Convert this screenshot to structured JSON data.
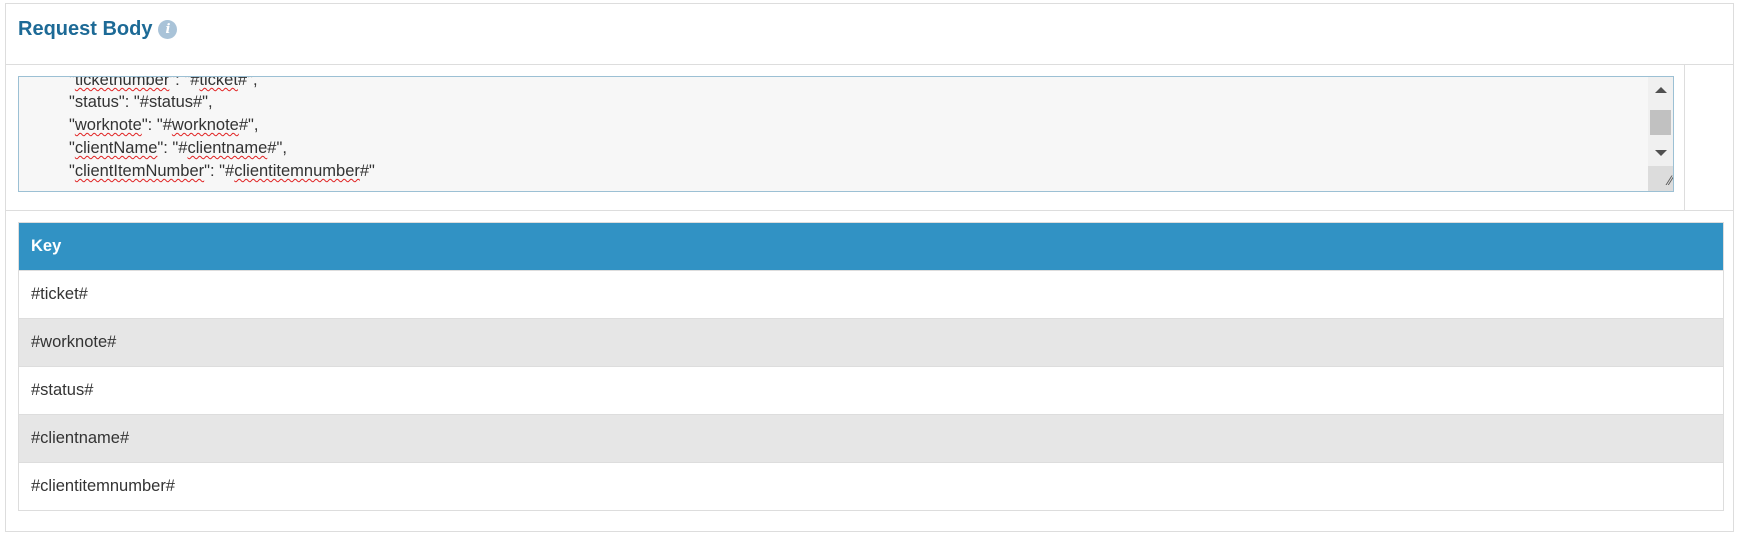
{
  "section": {
    "title": "Request Body",
    "info_icon": "info-icon"
  },
  "request_body": {
    "lines": [
      {
        "key": "ticketnumber",
        "value": "#ticket#",
        "trail": ","
      },
      {
        "key": "status",
        "value": "#status#",
        "trail": ","
      },
      {
        "key": "worknote",
        "value": "#worknote#",
        "trail": ","
      },
      {
        "key": "clientName",
        "value": "#clientname#",
        "trail": ","
      },
      {
        "key": "clientItemNumber",
        "value": "#clientitemnumber#",
        "trail": ""
      }
    ]
  },
  "key_table": {
    "header": "Key",
    "rows": [
      "#ticket#",
      "#worknote#",
      "#status#",
      "#clientname#",
      "#clientitemnumber#"
    ]
  },
  "colors": {
    "title": "#1d6a96",
    "table_header": "#3192c4",
    "alt_row": "#e6e6e6"
  }
}
